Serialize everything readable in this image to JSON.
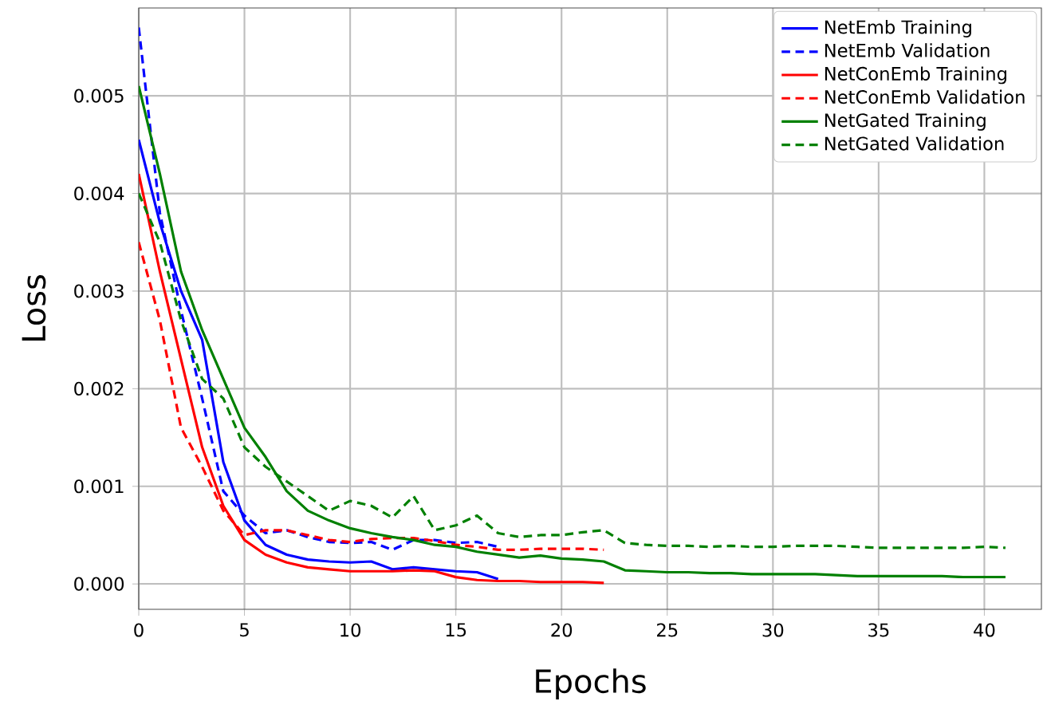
{
  "chart_data": {
    "type": "line",
    "xlabel": "Epochs",
    "ylabel": "Loss",
    "xlim": [
      0,
      42.7
    ],
    "ylim": [
      -0.00026,
      0.0059
    ],
    "xticks": [
      0,
      5,
      10,
      15,
      20,
      25,
      30,
      35,
      40
    ],
    "yticks": [
      {
        "value": 0,
        "label": "0.000"
      },
      {
        "value": 0.001,
        "label": "0.001"
      },
      {
        "value": 0.002,
        "label": "0.002"
      },
      {
        "value": 0.003,
        "label": "0.003"
      },
      {
        "value": 0.004,
        "label": "0.004"
      },
      {
        "value": 0.005,
        "label": "0.005"
      }
    ],
    "grid": true,
    "legend": "top right",
    "marker": "none",
    "series": [
      {
        "name": "NetEmb Training",
        "color": "#0000ff",
        "line_style": "solid",
        "x": [
          0,
          1,
          2,
          3,
          4,
          5,
          6,
          7,
          8,
          9,
          10,
          11,
          12,
          13,
          14,
          15,
          16,
          17
        ],
        "values": [
          0.00455,
          0.0037,
          0.003,
          0.0025,
          0.00125,
          0.00065,
          0.0004,
          0.0003,
          0.00025,
          0.00023,
          0.00022,
          0.00023,
          0.00015,
          0.00017,
          0.00015,
          0.00013,
          0.00012,
          5e-05
        ]
      },
      {
        "name": "NetEmb Validation",
        "color": "#0000ff",
        "line_style": "dashed",
        "x": [
          0,
          1,
          2,
          3,
          4,
          5,
          6,
          7,
          8,
          9,
          10,
          11,
          12,
          13,
          14,
          15,
          16,
          17
        ],
        "values": [
          0.0057,
          0.0038,
          0.0028,
          0.0019,
          0.00095,
          0.0007,
          0.00052,
          0.00055,
          0.00048,
          0.00043,
          0.00042,
          0.00043,
          0.00035,
          0.00045,
          0.00045,
          0.00042,
          0.00043,
          0.00038
        ]
      },
      {
        "name": "NetConEmb Training",
        "color": "#ff0000",
        "line_style": "solid",
        "x": [
          0,
          1,
          2,
          3,
          4,
          5,
          6,
          7,
          8,
          9,
          10,
          11,
          12,
          13,
          14,
          15,
          16,
          17,
          18,
          19,
          20,
          21,
          22
        ],
        "values": [
          0.0042,
          0.0032,
          0.0023,
          0.0014,
          0.0008,
          0.00045,
          0.0003,
          0.00022,
          0.00017,
          0.00015,
          0.00013,
          0.00013,
          0.00013,
          0.00014,
          0.00013,
          7e-05,
          4e-05,
          3e-05,
          3e-05,
          2e-05,
          2e-05,
          2e-05,
          1e-05
        ]
      },
      {
        "name": "NetConEmb Validation",
        "color": "#ff0000",
        "line_style": "dashed",
        "x": [
          0,
          1,
          2,
          3,
          4,
          5,
          6,
          7,
          8,
          9,
          10,
          11,
          12,
          13,
          14,
          15,
          16,
          17,
          18,
          19,
          20,
          21,
          22
        ],
        "values": [
          0.0035,
          0.0027,
          0.0016,
          0.0012,
          0.00075,
          0.0005,
          0.00055,
          0.00055,
          0.0005,
          0.00045,
          0.00043,
          0.00046,
          0.00047,
          0.00047,
          0.00044,
          0.0004,
          0.00038,
          0.00035,
          0.00035,
          0.00036,
          0.00036,
          0.00036,
          0.00035
        ]
      },
      {
        "name": "NetGated Training",
        "color": "#008000",
        "line_style": "solid",
        "x": [
          0,
          1,
          2,
          3,
          4,
          5,
          6,
          7,
          8,
          9,
          10,
          11,
          12,
          13,
          14,
          15,
          16,
          17,
          18,
          19,
          20,
          21,
          22,
          23,
          24,
          25,
          26,
          27,
          28,
          29,
          30,
          31,
          32,
          33,
          34,
          35,
          36,
          37,
          38,
          39,
          40,
          41
        ],
        "values": [
          0.0051,
          0.0042,
          0.0032,
          0.0026,
          0.0021,
          0.0016,
          0.0013,
          0.00095,
          0.00075,
          0.00065,
          0.00057,
          0.00052,
          0.00048,
          0.00045,
          0.0004,
          0.00038,
          0.00033,
          0.0003,
          0.00027,
          0.00029,
          0.00026,
          0.00025,
          0.00023,
          0.00014,
          0.00013,
          0.00012,
          0.00012,
          0.00011,
          0.00011,
          0.0001,
          0.0001,
          0.0001,
          0.0001,
          9e-05,
          8e-05,
          8e-05,
          8e-05,
          8e-05,
          8e-05,
          7e-05,
          7e-05,
          7e-05
        ]
      },
      {
        "name": "NetGated Validation",
        "color": "#008000",
        "line_style": "dashed",
        "x": [
          0,
          1,
          2,
          3,
          4,
          5,
          6,
          7,
          8,
          9,
          10,
          11,
          12,
          13,
          14,
          15,
          16,
          17,
          18,
          19,
          20,
          21,
          22,
          23,
          24,
          25,
          26,
          27,
          28,
          29,
          30,
          31,
          32,
          33,
          34,
          35,
          36,
          37,
          38,
          39,
          40,
          41
        ],
        "values": [
          0.004,
          0.0035,
          0.0027,
          0.0021,
          0.0019,
          0.0014,
          0.0012,
          0.00105,
          0.0009,
          0.00075,
          0.00085,
          0.0008,
          0.00068,
          0.0009,
          0.00055,
          0.0006,
          0.0007,
          0.00052,
          0.00048,
          0.0005,
          0.0005,
          0.00053,
          0.00055,
          0.00042,
          0.0004,
          0.00039,
          0.00039,
          0.00038,
          0.00039,
          0.00038,
          0.00038,
          0.00039,
          0.00039,
          0.00039,
          0.00038,
          0.00037,
          0.00037,
          0.00037,
          0.00037,
          0.00037,
          0.00038,
          0.00037
        ]
      }
    ]
  }
}
